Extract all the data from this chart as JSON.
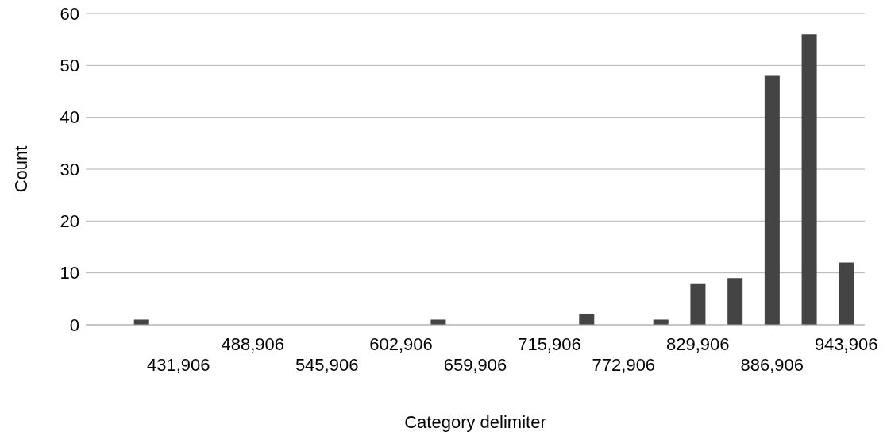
{
  "chart_data": {
    "type": "bar",
    "xlabel": "Category delimiter",
    "ylabel": "Count",
    "categories": [
      null,
      null,
      "431,906",
      null,
      "488,906",
      null,
      "545,906",
      null,
      "602,906",
      null,
      "659,906",
      null,
      "715,906",
      null,
      "772,906",
      null,
      "829,906",
      null,
      "886,906",
      null,
      "943,906"
    ],
    "values": [
      0,
      1,
      0,
      0,
      0,
      0,
      0,
      0,
      0,
      1,
      0,
      0,
      0,
      2,
      0,
      1,
      8,
      9,
      48,
      56,
      12
    ],
    "color": "#444444",
    "ylim": [
      0,
      60
    ],
    "yticks": [
      0,
      10,
      20,
      30,
      40,
      50,
      60
    ],
    "grid": "y",
    "legend": false
  }
}
